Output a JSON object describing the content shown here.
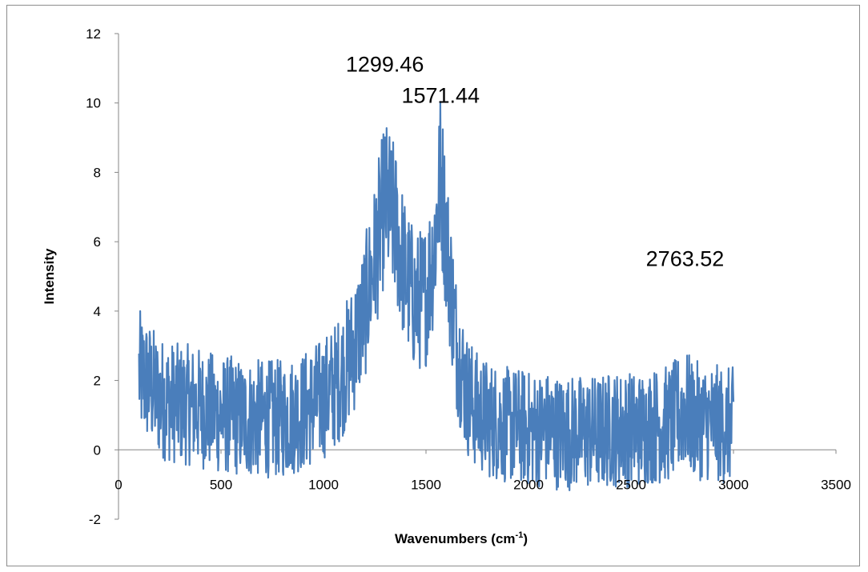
{
  "chart_data": {
    "type": "line",
    "title": "",
    "xlabel": "Wavenumbers (cm",
    "xlabel_superscript": "-1",
    "xlabel_suffix": ")",
    "ylabel": "Intensity",
    "xlim": [
      0,
      3500
    ],
    "ylim": [
      -2,
      12
    ],
    "x_ticks": [
      0,
      500,
      1000,
      1500,
      2000,
      2500,
      3000,
      3500
    ],
    "x_tick_labels": [
      "0",
      "500",
      "1000",
      "1500",
      "2000",
      "2500",
      "3000",
      "3500"
    ],
    "y_ticks": [
      -2,
      0,
      2,
      4,
      6,
      8,
      10,
      12
    ],
    "y_tick_labels": [
      "-2",
      "0",
      "2",
      "4",
      "6",
      "8",
      "10",
      "12"
    ],
    "grid": false,
    "legend": "none",
    "series_color": "#4a7ebb",
    "series": [
      {
        "x": [
          100,
          150,
          200,
          250,
          300,
          350,
          400,
          450,
          500,
          550,
          600,
          650,
          700,
          750,
          800,
          850,
          900,
          950,
          1000,
          1050,
          1100,
          1150,
          1200,
          1250,
          1299.46,
          1350,
          1400,
          1450,
          1500,
          1540,
          1571.44,
          1600,
          1650,
          1700,
          1750,
          1800,
          1850,
          1900,
          1950,
          2000,
          2050,
          2100,
          2150,
          2200,
          2250,
          2300,
          2350,
          2400,
          2450,
          2500,
          2550,
          2600,
          2650,
          2700,
          2763.52,
          2800,
          2850,
          2900,
          2950,
          3000
        ],
        "y": [
          2.2,
          1.9,
          1.5,
          1.4,
          1.3,
          1.3,
          1.2,
          1.1,
          1.0,
          1.0,
          0.9,
          0.9,
          0.9,
          0.9,
          0.9,
          1.0,
          1.1,
          1.3,
          1.5,
          1.8,
          2.3,
          3.0,
          4.0,
          5.5,
          7.2,
          6.5,
          5.0,
          4.2,
          4.5,
          5.8,
          8.0,
          6.0,
          3.0,
          1.6,
          1.1,
          0.9,
          0.8,
          0.7,
          0.7,
          0.6,
          0.6,
          0.6,
          0.5,
          0.5,
          0.5,
          0.5,
          0.5,
          0.6,
          0.6,
          0.6,
          0.6,
          0.7,
          0.7,
          0.8,
          1.2,
          0.9,
          0.8,
          0.8,
          0.7,
          0.7
        ]
      }
    ],
    "annotations": [
      {
        "text": "1299.46",
        "x": 1299.46,
        "y": 10.9
      },
      {
        "text": "1571.44",
        "x": 1571.44,
        "y": 10.0
      },
      {
        "text": "2763.52",
        "x": 2763.52,
        "y": 5.3
      }
    ]
  }
}
